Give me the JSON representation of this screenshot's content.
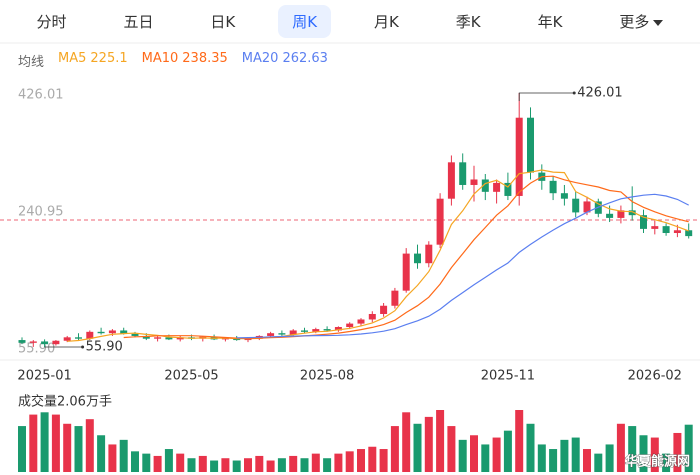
{
  "tabs": [
    "分时",
    "五日",
    "日K",
    "周K",
    "月K",
    "季K",
    "年K",
    "更多"
  ],
  "active_tab": "周K",
  "watermark": "华夏能源网",
  "chart_data": {
    "type": "candlestick",
    "ma_title": "均线",
    "ma": [
      {
        "name": "MA5",
        "legend_value": 225.1,
        "color": "#f5a623",
        "values": [
          null,
          null,
          null,
          null,
          64.2,
          65.4,
          68.2,
          71.4,
          74.4,
          75.4,
          76.2,
          74.2,
          73,
          70.4,
          69.4,
          68.6,
          69.2,
          68.6,
          69,
          68.2,
          68.2,
          68.4,
          70.2,
          71.2,
          74,
          76,
          78,
          78.8,
          81,
          83,
          86.6,
          91,
          98.2,
          108.8,
          129.2,
          145.6,
          165.8,
          197,
          234.4,
          254.4,
          278.8,
          294.2,
          298.8,
          289,
          308.6,
          310.6,
          313.8,
          310.8,
          310,
          282.4,
          274,
          264.4,
          257.2,
          253.8,
          253,
          245,
          241.4,
          237,
          231.2,
          225.1
        ]
      },
      {
        "name": "MA10",
        "legend_value": 238.35,
        "color": "#ff6a1a",
        "values": [
          null,
          null,
          null,
          null,
          null,
          null,
          null,
          null,
          null,
          69.8,
          70.8,
          71.2,
          72.2,
          72.4,
          72.4,
          72.4,
          71.7,
          70.8,
          69.7,
          68.8,
          68.4,
          68.8,
          69.4,
          70.1,
          71.1,
          72.1,
          73.2,
          74.5,
          76.1,
          78.5,
          81.3,
          84.5,
          88.5,
          94.9,
          106.1,
          116.1,
          128.4,
          147.6,
          171.6,
          191.8,
          212.2,
          230,
          247.9,
          261.7,
          281.5,
          294.7,
          304,
          304.8,
          299.5,
          295.5,
          292.3,
          289.1,
          284,
          281.9,
          267.7,
          259.5,
          252.9,
          247.1,
          242.5,
          238.35
        ]
      },
      {
        "name": "MA20",
        "legend_value": 262.63,
        "color": "#5b7ff0",
        "values": [
          null,
          null,
          null,
          null,
          null,
          null,
          null,
          null,
          null,
          null,
          null,
          null,
          null,
          null,
          null,
          null,
          null,
          null,
          null,
          69.3,
          69.6,
          70,
          70.8,
          71.25,
          71.75,
          72.25,
          72.45,
          72.65,
          72.9,
          73.65,
          74.85,
          76.65,
          78.95,
          82.5,
          88.6,
          94.1,
          100.8,
          111.05,
          123.85,
          135.15,
          146.75,
          157.25,
          168.2,
          178.3,
          193.8,
          205.4,
          216.2,
          226.2,
          235.55,
          243.65,
          252.25,
          259.55,
          265.95,
          271.8,
          274.6,
          277.1,
          278.45,
          275.95,
          271,
          262.63
        ]
      }
    ],
    "up_color": "#e8334a",
    "down_color": "#1a9a6e",
    "ylim": [
      55.9,
      426.01
    ],
    "yticks": [
      {
        "value": 55.9,
        "label": "55.90"
      },
      {
        "value": 240.95,
        "label": "240.95"
      },
      {
        "value": 426.01,
        "label": "426.01"
      }
    ],
    "annotations": [
      "426.01",
      "55.90"
    ],
    "categories": [
      null,
      null,
      "2025-01",
      null,
      null,
      null,
      null,
      null,
      null,
      null,
      null,
      null,
      null,
      null,
      null,
      "2025-05",
      null,
      null,
      null,
      null,
      null,
      null,
      null,
      null,
      null,
      null,
      null,
      "2025-08",
      null,
      null,
      null,
      null,
      null,
      null,
      null,
      null,
      null,
      null,
      null,
      null,
      null,
      null,
      null,
      "2025-11",
      null,
      null,
      null,
      null,
      null,
      null,
      null,
      null,
      null,
      null,
      null,
      null,
      "2026-02",
      null,
      null,
      null
    ],
    "candles": [
      [
        66,
        70,
        60,
        62
      ],
      [
        62,
        66,
        56,
        64
      ],
      [
        64,
        67,
        55.9,
        60
      ],
      [
        60,
        66,
        58,
        65
      ],
      [
        65,
        72,
        63,
        70
      ],
      [
        70,
        76,
        66,
        68
      ],
      [
        68,
        80,
        66,
        78
      ],
      [
        78,
        84,
        74,
        76
      ],
      [
        76,
        82,
        72,
        80
      ],
      [
        80,
        84,
        74,
        75
      ],
      [
        75,
        78,
        70,
        72
      ],
      [
        72,
        76,
        66,
        68
      ],
      [
        68,
        72,
        64,
        70
      ],
      [
        70,
        74,
        66,
        67
      ],
      [
        67,
        72,
        64,
        70
      ],
      [
        70,
        74,
        66,
        68
      ],
      [
        68,
        72,
        64,
        71
      ],
      [
        71,
        74,
        66,
        67
      ],
      [
        67,
        70,
        64,
        69
      ],
      [
        69,
        72,
        65,
        66
      ],
      [
        66,
        70,
        63,
        68
      ],
      [
        68,
        73,
        66,
        72
      ],
      [
        72,
        78,
        70,
        76
      ],
      [
        76,
        80,
        72,
        74
      ],
      [
        74,
        82,
        72,
        80
      ],
      [
        80,
        84,
        76,
        78
      ],
      [
        78,
        84,
        76,
        82
      ],
      [
        82,
        86,
        78,
        80
      ],
      [
        80,
        86,
        78,
        85
      ],
      [
        85,
        92,
        82,
        90
      ],
      [
        90,
        98,
        86,
        96
      ],
      [
        96,
        108,
        92,
        104
      ],
      [
        104,
        120,
        100,
        116
      ],
      [
        116,
        142,
        112,
        138
      ],
      [
        138,
        200,
        135,
        192
      ],
      [
        192,
        205,
        170,
        178
      ],
      [
        178,
        210,
        172,
        205
      ],
      [
        205,
        280,
        200,
        272
      ],
      [
        272,
        335,
        262,
        325
      ],
      [
        325,
        338,
        285,
        292
      ],
      [
        292,
        320,
        268,
        300
      ],
      [
        300,
        308,
        270,
        282
      ],
      [
        282,
        300,
        265,
        295
      ],
      [
        295,
        310,
        270,
        276
      ],
      [
        276,
        426.01,
        262,
        390
      ],
      [
        390,
        405,
        300,
        310
      ],
      [
        310,
        322,
        285,
        298
      ],
      [
        298,
        305,
        270,
        280
      ],
      [
        280,
        292,
        262,
        272
      ],
      [
        272,
        282,
        245,
        252
      ],
      [
        252,
        275,
        248,
        268
      ],
      [
        268,
        272,
        245,
        250
      ],
      [
        250,
        262,
        238,
        244
      ],
      [
        244,
        262,
        236,
        255
      ],
      [
        255,
        290,
        240,
        248
      ],
      [
        248,
        256,
        222,
        228
      ],
      [
        228,
        240,
        220,
        232
      ],
      [
        232,
        236,
        218,
        222
      ],
      [
        222,
        234,
        216,
        226
      ],
      [
        226,
        236,
        214,
        217.5
      ]
    ],
    "volume_label": "成交量2.06万手",
    "volumes": [
      2.0,
      2.5,
      2.6,
      2.5,
      2.1,
      2.0,
      2.3,
      1.6,
      1.2,
      1.4,
      0.9,
      0.8,
      0.7,
      1.0,
      0.8,
      0.6,
      0.7,
      0.5,
      0.6,
      0.5,
      0.6,
      0.7,
      0.5,
      0.6,
      0.7,
      0.6,
      0.8,
      0.6,
      0.8,
      0.9,
      1.0,
      1.1,
      1.0,
      2.0,
      2.6,
      2.1,
      2.4,
      2.7,
      2.0,
      1.4,
      1.6,
      1.2,
      1.5,
      1.8,
      2.7,
      2.1,
      1.2,
      1.0,
      1.4,
      1.5,
      1.0,
      0.8,
      1.2,
      2.1,
      2.0,
      1.6,
      1.5,
      0.8,
      1.7,
      2.06
    ]
  }
}
